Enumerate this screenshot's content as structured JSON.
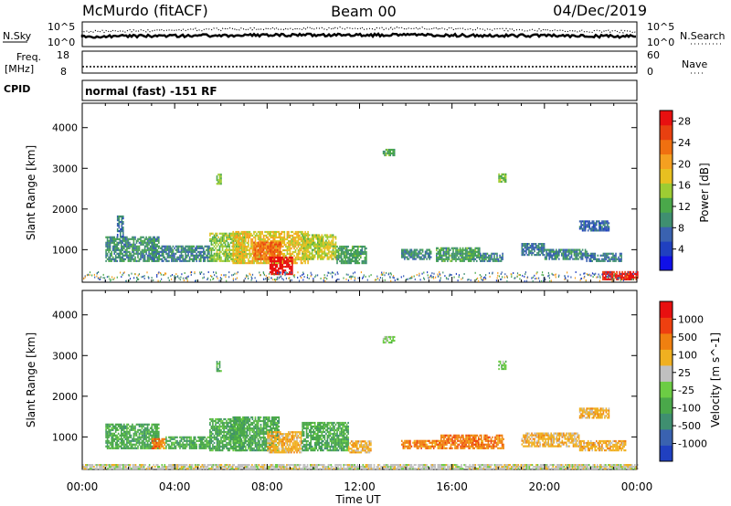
{
  "header": {
    "station": "McMurdo (fitACF)",
    "beam": "Beam 00",
    "date": "04/Dec/2019"
  },
  "noise_panel": {
    "left_label": "N.Sky",
    "right_label": "N.Search",
    "left_ticks": [
      "10^5",
      "10^0"
    ],
    "right_ticks": [
      "10^5",
      "10^0"
    ]
  },
  "freq_panel": {
    "left_label_line1": "Freq.",
    "left_label_line2": "[MHz]",
    "left_ticks": [
      "18",
      "8"
    ],
    "right_label": "Nave",
    "right_ticks": [
      "60",
      "0"
    ]
  },
  "cpid_panel": {
    "label": "CPID",
    "program": "normal (fast) -151 RF"
  },
  "chart_data": [
    {
      "type": "heatmap",
      "name": "power",
      "ylabel": "Slant Range [km]",
      "xlabel": "Time UT",
      "x_ticks": [
        "00:00",
        "04:00",
        "08:00",
        "12:00",
        "16:00",
        "20:00",
        "00:00"
      ],
      "y_ticks": [
        1000,
        2000,
        3000,
        4000
      ],
      "ylim": [
        200,
        4600
      ],
      "xlim_hours": [
        0,
        24
      ],
      "colorbar": {
        "label": "Power [dB]",
        "ticks": [
          4,
          8,
          12,
          16,
          20,
          24,
          28
        ],
        "range": [
          0,
          30
        ],
        "colors": [
          "#1010e8",
          "#2040c0",
          "#3a62b0",
          "#3f8f70",
          "#4aa84a",
          "#9dcc33",
          "#e8c020",
          "#f5a020",
          "#f07010",
          "#e84010",
          "#e81010"
        ]
      },
      "regions": [
        {
          "t0": 1.0,
          "t1": 3.3,
          "r0": 700,
          "r1": 1300,
          "v": 10
        },
        {
          "t0": 1.5,
          "t1": 1.8,
          "r0": 1300,
          "r1": 1800,
          "v": 8
        },
        {
          "t0": 3.0,
          "t1": 5.5,
          "r0": 700,
          "r1": 1100,
          "v": 9
        },
        {
          "t0": 5.5,
          "t1": 7.0,
          "r0": 700,
          "r1": 1400,
          "v": 14
        },
        {
          "t0": 6.5,
          "t1": 9.8,
          "r0": 650,
          "r1": 1450,
          "v": 18
        },
        {
          "t0": 7.4,
          "t1": 8.6,
          "r0": 750,
          "r1": 1200,
          "v": 24
        },
        {
          "t0": 8.1,
          "t1": 9.1,
          "r0": 380,
          "r1": 800,
          "v": 30
        },
        {
          "t0": 9.5,
          "t1": 11.0,
          "r0": 750,
          "r1": 1350,
          "v": 16
        },
        {
          "t0": 11.0,
          "t1": 12.3,
          "r0": 650,
          "r1": 1100,
          "v": 11
        },
        {
          "t0": 13.8,
          "t1": 15.1,
          "r0": 750,
          "r1": 1000,
          "v": 9
        },
        {
          "t0": 15.3,
          "t1": 17.2,
          "r0": 700,
          "r1": 1050,
          "v": 11
        },
        {
          "t0": 17.2,
          "t1": 18.2,
          "r0": 700,
          "r1": 900,
          "v": 9
        },
        {
          "t0": 19.0,
          "t1": 20.0,
          "r0": 850,
          "r1": 1150,
          "v": 8
        },
        {
          "t0": 20.0,
          "t1": 21.8,
          "r0": 750,
          "r1": 1000,
          "v": 9
        },
        {
          "t0": 21.8,
          "t1": 23.3,
          "r0": 700,
          "r1": 900,
          "v": 8
        },
        {
          "t0": 22.5,
          "t1": 24.0,
          "r0": 250,
          "r1": 450,
          "v": 29
        },
        {
          "t0": 21.5,
          "t1": 22.8,
          "r0": 1450,
          "r1": 1700,
          "v": 7
        },
        {
          "t0": 13.0,
          "t1": 13.5,
          "r0": 3300,
          "r1": 3450,
          "v": 12
        },
        {
          "t0": 18.0,
          "t1": 18.3,
          "r0": 2650,
          "r1": 2850,
          "v": 14
        },
        {
          "t0": 5.8,
          "t1": 6.0,
          "r0": 2600,
          "r1": 2850,
          "v": 14
        }
      ]
    },
    {
      "type": "heatmap",
      "name": "velocity",
      "ylabel": "Slant Range [km]",
      "xlabel": "Time UT",
      "x_ticks": [
        "00:00",
        "04:00",
        "08:00",
        "12:00",
        "16:00",
        "20:00",
        "00:00"
      ],
      "y_ticks": [
        1000,
        2000,
        3000,
        4000
      ],
      "ylim": [
        200,
        4600
      ],
      "xlim_hours": [
        0,
        24
      ],
      "colorbar": {
        "label": "Velocity [m s^-1]",
        "ticks": [
          "1000",
          "500",
          "100",
          "25",
          "-25",
          "-100",
          "-500",
          "-1000"
        ],
        "colors": [
          "#2040c0",
          "#3a62b0",
          "#3f8f70",
          "#4aa84a",
          "#6ccc44",
          "#c0c0c0",
          "#f0b020",
          "#f08010",
          "#ee4010",
          "#e81010"
        ]
      },
      "regions": [
        {
          "t0": 1.0,
          "t1": 3.3,
          "r0": 700,
          "r1": 1300,
          "v": 3
        },
        {
          "t0": 3.0,
          "t1": 3.6,
          "r0": 700,
          "r1": 950,
          "v": 7
        },
        {
          "t0": 3.6,
          "t1": 5.5,
          "r0": 700,
          "r1": 1000,
          "v": 3
        },
        {
          "t0": 5.5,
          "t1": 7.0,
          "r0": 650,
          "r1": 1450,
          "v": 3
        },
        {
          "t0": 6.5,
          "t1": 8.5,
          "r0": 650,
          "r1": 1500,
          "v": 3
        },
        {
          "t0": 8.0,
          "t1": 9.5,
          "r0": 600,
          "r1": 1100,
          "v": 6
        },
        {
          "t0": 9.5,
          "t1": 11.5,
          "r0": 650,
          "r1": 1350,
          "v": 3
        },
        {
          "t0": 11.5,
          "t1": 12.5,
          "r0": 600,
          "r1": 900,
          "v": 6
        },
        {
          "t0": 13.8,
          "t1": 15.5,
          "r0": 700,
          "r1": 900,
          "v": 7
        },
        {
          "t0": 15.5,
          "t1": 18.2,
          "r0": 700,
          "r1": 1050,
          "v": 7
        },
        {
          "t0": 19.0,
          "t1": 21.5,
          "r0": 750,
          "r1": 1100,
          "v": 6
        },
        {
          "t0": 21.5,
          "t1": 23.5,
          "r0": 650,
          "r1": 900,
          "v": 6
        },
        {
          "t0": 0.0,
          "t1": 24.0,
          "r0": 200,
          "r1": 320,
          "v": 5
        },
        {
          "t0": 21.5,
          "t1": 22.8,
          "r0": 1450,
          "r1": 1700,
          "v": 6
        },
        {
          "t0": 13.0,
          "t1": 13.5,
          "r0": 3300,
          "r1": 3450,
          "v": 4
        },
        {
          "t0": 18.0,
          "t1": 18.3,
          "r0": 2650,
          "r1": 2850,
          "v": 4
        },
        {
          "t0": 5.8,
          "t1": 6.0,
          "r0": 2600,
          "r1": 2850,
          "v": 3
        }
      ]
    }
  ]
}
